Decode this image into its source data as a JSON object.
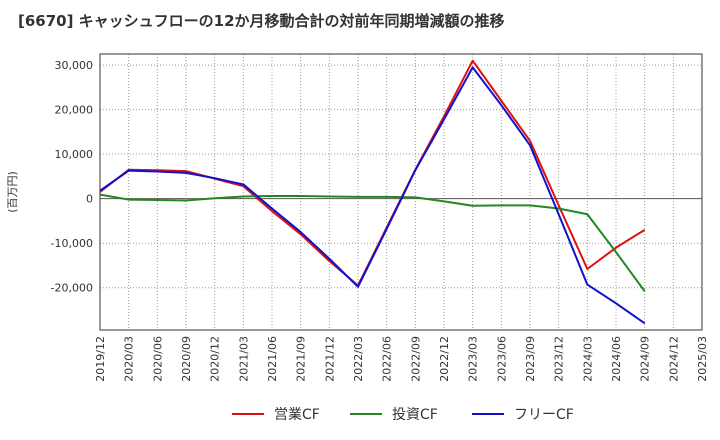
{
  "chart_data": {
    "type": "line",
    "title": "[6670]  キャッシュフローの12か月移動合計の対前年同期増減額の推移",
    "ylabel": "(百万円)",
    "xlabel": "",
    "ylim": [
      -29500,
      32500
    ],
    "yticks": [
      30000,
      20000,
      10000,
      0,
      -10000,
      -20000
    ],
    "ytick_labels": [
      "30,000",
      "20,000",
      "10,000",
      "0",
      "-10,000",
      "-20,000"
    ],
    "categories": [
      "2019/12",
      "2020/03",
      "2020/06",
      "2020/09",
      "2020/12",
      "2021/03",
      "2021/06",
      "2021/09",
      "2021/12",
      "2022/03",
      "2022/06",
      "2022/09",
      "2022/12",
      "2023/03",
      "2023/06",
      "2023/09",
      "2023/12",
      "2024/03",
      "2024/06",
      "2024/09",
      "2024/12",
      "2025/03"
    ],
    "grid": true,
    "legend_position": "bottom",
    "series": [
      {
        "name": "営業CF",
        "color": "#dd1111",
        "values": [
          1500,
          6500,
          6400,
          6200,
          4500,
          2800,
          -2800,
          -8000,
          -14000,
          -19500,
          -6500,
          6500,
          18500,
          31000,
          22000,
          13000,
          -1500,
          -15800,
          -11000,
          -7000,
          null,
          null
        ]
      },
      {
        "name": "投資CF",
        "color": "#228822",
        "values": [
          900,
          -200,
          -300,
          -400,
          100,
          500,
          600,
          600,
          500,
          400,
          400,
          300,
          -600,
          -1600,
          -1500,
          -1500,
          -2200,
          -3500,
          -12000,
          -20800,
          null,
          null
        ]
      },
      {
        "name": "フリーCF",
        "color": "#1111cc",
        "values": [
          1800,
          6300,
          6100,
          5800,
          4600,
          3200,
          -2200,
          -7500,
          -13500,
          -19800,
          -6800,
          6400,
          17800,
          29500,
          21000,
          12000,
          -3500,
          -19300,
          -23500,
          -28000,
          null,
          null
        ]
      }
    ]
  }
}
